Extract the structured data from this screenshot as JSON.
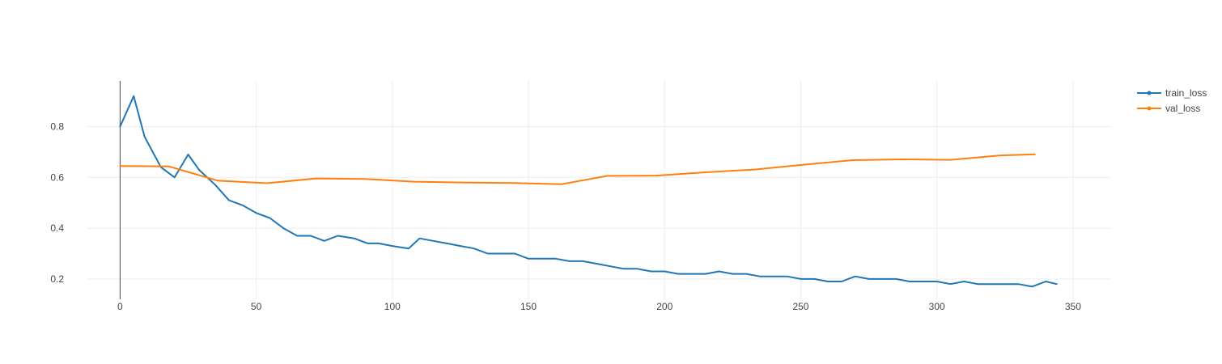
{
  "chart_data": {
    "type": "line",
    "title": "",
    "xlabel": "",
    "ylabel": "",
    "xlim": [
      -12,
      364
    ],
    "ylim": [
      0.12,
      0.98
    ],
    "x_ticks": [
      0,
      50,
      100,
      150,
      200,
      250,
      300,
      350
    ],
    "y_ticks": [
      0.2,
      0.4,
      0.6,
      0.8
    ],
    "grid": true,
    "legend_position": "top-right",
    "series": [
      {
        "name": "train_loss",
        "color": "#1f77b4",
        "x": [
          0,
          5,
          9,
          15,
          20,
          25,
          29,
          35,
          40,
          45,
          50,
          55,
          60,
          65,
          70,
          75,
          80,
          86,
          91,
          95,
          100,
          106,
          110,
          115,
          120,
          125,
          130,
          135,
          141,
          145,
          150,
          155,
          160,
          165,
          170,
          175,
          180,
          185,
          190,
          195,
          200,
          205,
          210,
          215,
          220,
          225,
          230,
          235,
          240,
          245,
          250,
          255,
          260,
          265,
          270,
          275,
          280,
          285,
          290,
          295,
          300,
          305,
          310,
          315,
          320,
          325,
          330,
          335,
          340,
          344
        ],
        "y": [
          0.8,
          0.92,
          0.76,
          0.64,
          0.6,
          0.69,
          0.63,
          0.57,
          0.51,
          0.49,
          0.46,
          0.44,
          0.4,
          0.37,
          0.37,
          0.35,
          0.37,
          0.36,
          0.34,
          0.34,
          0.33,
          0.32,
          0.36,
          0.35,
          0.34,
          0.33,
          0.32,
          0.3,
          0.3,
          0.3,
          0.28,
          0.28,
          0.28,
          0.27,
          0.27,
          0.26,
          0.25,
          0.24,
          0.24,
          0.23,
          0.23,
          0.22,
          0.22,
          0.22,
          0.23,
          0.22,
          0.22,
          0.21,
          0.21,
          0.21,
          0.2,
          0.2,
          0.19,
          0.19,
          0.21,
          0.2,
          0.2,
          0.2,
          0.19,
          0.19,
          0.19,
          0.18,
          0.19,
          0.18,
          0.18,
          0.18,
          0.18,
          0.17,
          0.19,
          0.18
        ]
      },
      {
        "name": "val_loss",
        "color": "#ff7f0e",
        "x": [
          0,
          18,
          36,
          54,
          72,
          90,
          108,
          126,
          144,
          162,
          179,
          197,
          215,
          233,
          251,
          269,
          287,
          305,
          323,
          336
        ],
        "y": [
          0.645,
          0.643,
          0.587,
          0.577,
          0.596,
          0.594,
          0.583,
          0.58,
          0.578,
          0.573,
          0.606,
          0.607,
          0.62,
          0.631,
          0.65,
          0.668,
          0.671,
          0.669,
          0.686,
          0.691
        ]
      }
    ]
  }
}
